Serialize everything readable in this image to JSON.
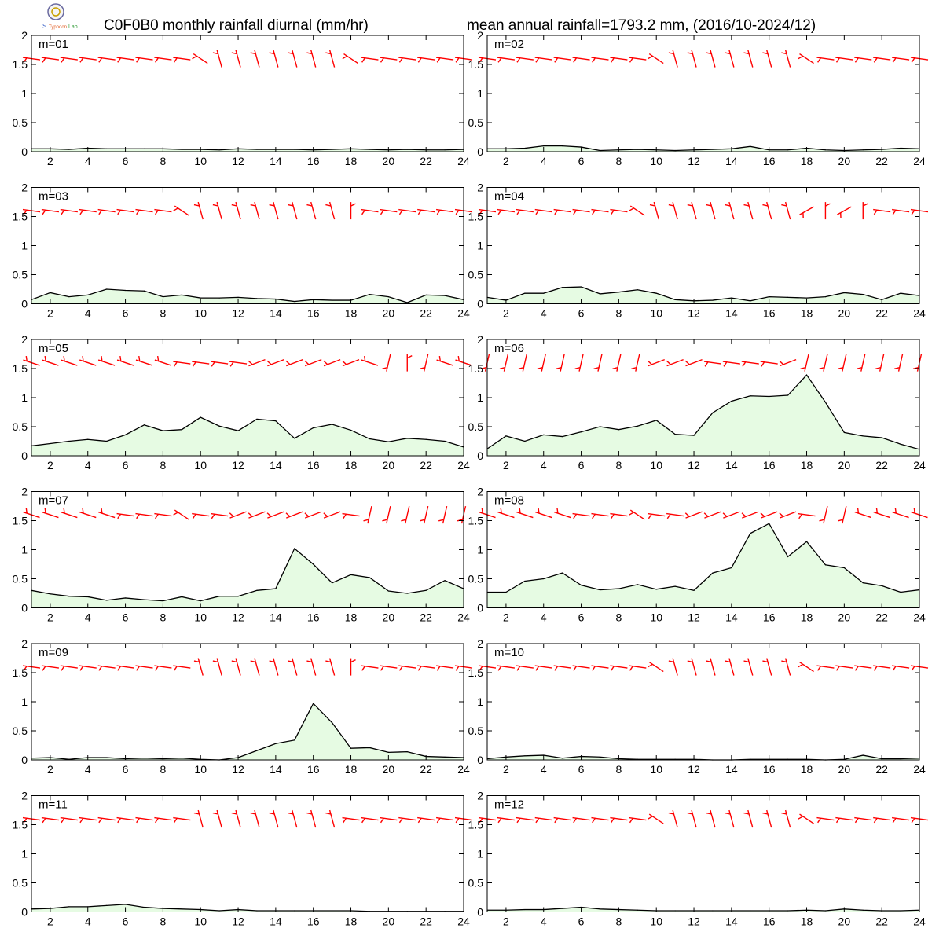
{
  "header": {
    "title_left": "C0F0B0 monthly rainfall diurnal (mm/hr)",
    "title_right": "mean annual rainfall=1793.2 mm, (2016/10-2024/12)"
  },
  "colors": {
    "fill": "#e6fbe3",
    "line": "#000000",
    "barb": "#ff0000"
  },
  "chart_data": {
    "type": "area",
    "x": [
      1,
      2,
      3,
      4,
      5,
      6,
      7,
      8,
      9,
      10,
      11,
      12,
      13,
      14,
      15,
      16,
      17,
      18,
      19,
      20,
      21,
      22,
      23,
      24
    ],
    "xticks": [
      2,
      4,
      6,
      8,
      10,
      12,
      14,
      16,
      18,
      20,
      22,
      24
    ],
    "xlim": [
      1,
      24
    ],
    "ylim": [
      0,
      2
    ],
    "yticks": [
      0,
      0.5,
      1,
      1.5,
      2
    ],
    "ytick_labels": [
      "0",
      "0.5",
      "1",
      "1.5",
      "2"
    ],
    "grid": false,
    "wind_barbs": "red wind barbs drawn along y = 1.6 at each hour",
    "panels": [
      {
        "label": "m=01",
        "values": [
          0.05,
          0.05,
          0.04,
          0.06,
          0.05,
          0.05,
          0.05,
          0.05,
          0.04,
          0.04,
          0.03,
          0.05,
          0.04,
          0.04,
          0.04,
          0.03,
          0.04,
          0.05,
          0.04,
          0.03,
          0.04,
          0.03,
          0.03,
          0.04
        ],
        "barbs": [
          1,
          1,
          1,
          1,
          1,
          1,
          1,
          1,
          1,
          2,
          3,
          3,
          3,
          3,
          3,
          3,
          3,
          2,
          1,
          1,
          1,
          1,
          1,
          1
        ]
      },
      {
        "label": "m=02",
        "values": [
          0.05,
          0.05,
          0.06,
          0.1,
          0.1,
          0.08,
          0.02,
          0.03,
          0.04,
          0.03,
          0.02,
          0.03,
          0.04,
          0.05,
          0.09,
          0.03,
          0.03,
          0.06,
          0.03,
          0.02,
          0.03,
          0.04,
          0.06,
          0.05
        ],
        "barbs": [
          1,
          1,
          1,
          1,
          1,
          1,
          1,
          1,
          1,
          2,
          3,
          3,
          3,
          3,
          3,
          3,
          3,
          2,
          1,
          1,
          1,
          1,
          1,
          1
        ]
      },
      {
        "label": "m=03",
        "values": [
          0.07,
          0.19,
          0.12,
          0.15,
          0.25,
          0.23,
          0.22,
          0.12,
          0.15,
          0.1,
          0.1,
          0.11,
          0.09,
          0.08,
          0.04,
          0.07,
          0.06,
          0.06,
          0.16,
          0.12,
          0.02,
          0.15,
          0.14,
          0.07
        ],
        "barbs": [
          1,
          1,
          1,
          1,
          1,
          1,
          1,
          1,
          2,
          3,
          3,
          3,
          3,
          3,
          3,
          3,
          3,
          0,
          1,
          1,
          1,
          1,
          1,
          1
        ]
      },
      {
        "label": "m=04",
        "values": [
          0.11,
          0.06,
          0.18,
          0.18,
          0.28,
          0.29,
          0.17,
          0.2,
          0.24,
          0.18,
          0.07,
          0.05,
          0.06,
          0.1,
          0.05,
          0.12,
          0.11,
          0.1,
          0.12,
          0.19,
          0.16,
          0.07,
          0.18,
          0.14
        ],
        "barbs": [
          1,
          1,
          1,
          1,
          1,
          1,
          1,
          1,
          2,
          3,
          3,
          3,
          3,
          3,
          3,
          3,
          3,
          4,
          0,
          4,
          0,
          1,
          1,
          1
        ]
      },
      {
        "label": "m=05",
        "values": [
          0.17,
          0.21,
          0.25,
          0.28,
          0.25,
          0.36,
          0.53,
          0.43,
          0.45,
          0.66,
          0.51,
          0.43,
          0.63,
          0.6,
          0.3,
          0.48,
          0.54,
          0.44,
          0.29,
          0.24,
          0.3,
          0.28,
          0.25,
          0.15
        ],
        "barbs": [
          5,
          5,
          5,
          5,
          5,
          5,
          5,
          5,
          1,
          1,
          1,
          1,
          6,
          6,
          6,
          6,
          6,
          6,
          5,
          7,
          0,
          7,
          5,
          5
        ]
      },
      {
        "label": "m=06",
        "values": [
          0.12,
          0.34,
          0.25,
          0.36,
          0.33,
          0.41,
          0.5,
          0.45,
          0.51,
          0.61,
          0.37,
          0.35,
          0.74,
          0.94,
          1.03,
          1.02,
          1.04,
          1.39,
          0.92,
          0.4,
          0.34,
          0.31,
          0.2,
          0.11
        ],
        "barbs": [
          7,
          7,
          7,
          7,
          7,
          7,
          7,
          7,
          7,
          6,
          6,
          6,
          1,
          1,
          1,
          1,
          6,
          7,
          7,
          7,
          7,
          7,
          7,
          7
        ]
      },
      {
        "label": "m=07",
        "values": [
          0.3,
          0.24,
          0.2,
          0.19,
          0.13,
          0.17,
          0.14,
          0.12,
          0.19,
          0.12,
          0.2,
          0.2,
          0.3,
          0.33,
          1.02,
          0.75,
          0.43,
          0.57,
          0.52,
          0.29,
          0.25,
          0.3,
          0.47,
          0.33
        ],
        "barbs": [
          5,
          5,
          5,
          5,
          5,
          1,
          1,
          1,
          2,
          1,
          1,
          6,
          6,
          6,
          6,
          6,
          6,
          1,
          7,
          7,
          7,
          7,
          7,
          7
        ]
      },
      {
        "label": "m=08",
        "values": [
          0.27,
          0.27,
          0.46,
          0.5,
          0.6,
          0.39,
          0.31,
          0.33,
          0.4,
          0.32,
          0.37,
          0.3,
          0.6,
          0.69,
          1.28,
          1.45,
          0.88,
          1.14,
          0.74,
          0.69,
          0.43,
          0.38,
          0.27,
          0.31
        ],
        "barbs": [
          5,
          5,
          5,
          5,
          5,
          1,
          1,
          1,
          2,
          1,
          1,
          6,
          6,
          6,
          6,
          6,
          6,
          1,
          7,
          7,
          5,
          5,
          5,
          5
        ]
      },
      {
        "label": "m=09",
        "values": [
          0.03,
          0.04,
          0.01,
          0.04,
          0.04,
          0.02,
          0.03,
          0.02,
          0.03,
          0.01,
          0.0,
          0.04,
          0.16,
          0.28,
          0.34,
          0.97,
          0.64,
          0.2,
          0.21,
          0.13,
          0.14,
          0.06,
          0.05,
          0.04
        ],
        "barbs": [
          1,
          1,
          1,
          1,
          1,
          1,
          1,
          1,
          1,
          3,
          3,
          3,
          3,
          3,
          3,
          3,
          3,
          0,
          1,
          1,
          1,
          1,
          1,
          1
        ]
      },
      {
        "label": "m=10",
        "values": [
          0.02,
          0.05,
          0.07,
          0.08,
          0.03,
          0.06,
          0.05,
          0.02,
          0.01,
          0.01,
          0.01,
          0.01,
          0.0,
          0.0,
          0.01,
          0.01,
          0.01,
          0.01,
          0.0,
          0.01,
          0.08,
          0.02,
          0.02,
          0.03
        ],
        "barbs": [
          1,
          1,
          1,
          1,
          1,
          1,
          1,
          1,
          1,
          2,
          3,
          3,
          3,
          3,
          3,
          3,
          3,
          2,
          1,
          1,
          1,
          1,
          1,
          1
        ]
      },
      {
        "label": "m=11",
        "values": [
          0.05,
          0.06,
          0.09,
          0.09,
          0.11,
          0.13,
          0.08,
          0.06,
          0.05,
          0.04,
          0.02,
          0.04,
          0.02,
          0.02,
          0.02,
          0.02,
          0.02,
          0.02,
          0.01,
          0.01,
          0.01,
          0.01,
          0.01,
          0.01
        ],
        "barbs": [
          1,
          1,
          1,
          1,
          1,
          1,
          1,
          1,
          1,
          3,
          3,
          3,
          3,
          3,
          3,
          3,
          3,
          1,
          1,
          1,
          1,
          1,
          1,
          1
        ]
      },
      {
        "label": "m=12",
        "values": [
          0.03,
          0.03,
          0.04,
          0.04,
          0.06,
          0.08,
          0.05,
          0.04,
          0.03,
          0.02,
          0.02,
          0.02,
          0.02,
          0.02,
          0.02,
          0.02,
          0.02,
          0.03,
          0.02,
          0.05,
          0.03,
          0.02,
          0.02,
          0.03
        ],
        "barbs": [
          1,
          1,
          1,
          1,
          1,
          1,
          1,
          1,
          1,
          2,
          3,
          3,
          3,
          3,
          3,
          3,
          3,
          2,
          1,
          1,
          1,
          1,
          1,
          1
        ]
      }
    ]
  }
}
